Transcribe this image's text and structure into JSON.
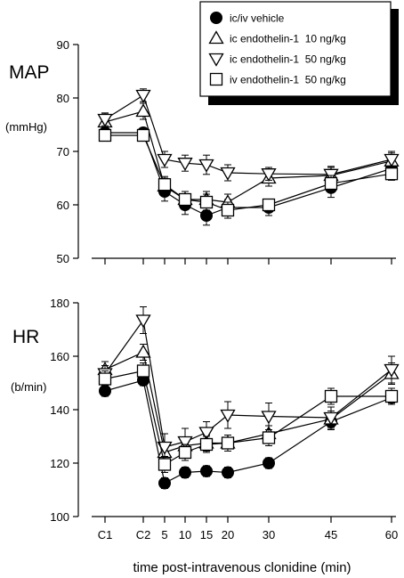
{
  "chart_data": [
    {
      "type": "line",
      "panel_label": "MAP",
      "ylabel": "(mmHg)",
      "xlabel": "",
      "ylim": [
        50,
        90
      ],
      "yticks": [
        50,
        60,
        70,
        80,
        90
      ],
      "grid": false,
      "series": [
        {
          "name": "ic/iv vehicle",
          "marker": "filled-circle",
          "x": [
            "C1",
            "C2",
            5,
            10,
            15,
            20,
            30,
            45,
            60
          ],
          "y": [
            73.5,
            73.5,
            62.5,
            60,
            58,
            59.5,
            59.5,
            63.2,
            66.8
          ],
          "err": [
            0.8,
            0.8,
            1.8,
            1.8,
            1.8,
            1.5,
            1.5,
            1.8,
            1.5
          ]
        },
        {
          "name": "ic endothelin-1  10 ng/kg",
          "marker": "triangle-up",
          "x": [
            "C1",
            "C2",
            5,
            10,
            15,
            20,
            30,
            45,
            60
          ],
          "y": [
            75.5,
            77.5,
            63.5,
            61,
            61,
            60.5,
            65,
            65.5,
            68.2
          ],
          "err": [
            1.5,
            1.5,
            1.5,
            1.5,
            1.5,
            1.5,
            1.5,
            1.5,
            1.5
          ]
        },
        {
          "name": "ic endothelin-1  50 ng/kg",
          "marker": "triangle-down",
          "x": [
            "C1",
            "C2",
            5,
            10,
            15,
            20,
            30,
            45,
            60
          ],
          "y": [
            76,
            80.5,
            68.5,
            67.8,
            67.5,
            66,
            65.8,
            65.7,
            68.5
          ],
          "err": [
            1.2,
            1.2,
            1.5,
            1.5,
            1.8,
            1.5,
            1.2,
            1.5,
            1.5
          ]
        },
        {
          "name": "iv endothelin-1  50 ng/kg",
          "marker": "open-square",
          "x": [
            "C1",
            "C2",
            5,
            10,
            15,
            20,
            30,
            45,
            60
          ],
          "y": [
            73,
            73,
            63.8,
            61,
            60.5,
            59,
            60,
            64,
            65.8
          ],
          "err": [
            0.8,
            0.8,
            1.5,
            1.5,
            1.5,
            1.5,
            1.0,
            1.5,
            1.2
          ]
        }
      ]
    },
    {
      "type": "line",
      "panel_label": "HR",
      "ylabel": "(b/min)",
      "xlabel": "time post-intravenous clonidine (min)",
      "ylim": [
        100,
        180
      ],
      "yticks": [
        100,
        120,
        140,
        160,
        180
      ],
      "xtick_labels": [
        "C1",
        "C2",
        "5",
        "10",
        "15",
        "20",
        "30",
        "45",
        "60"
      ],
      "grid": false,
      "series": [
        {
          "name": "ic/iv vehicle",
          "marker": "filled-circle",
          "x": [
            "C1",
            "C2",
            5,
            10,
            15,
            20,
            30,
            45,
            60
          ],
          "y": [
            147,
            151,
            112.5,
            116.5,
            117,
            116.5,
            120,
            135.5,
            144.5
          ],
          "err": [
            2,
            2,
            2,
            2,
            2,
            2,
            2,
            3,
            2
          ]
        },
        {
          "name": "ic endothelin-1  10 ng/kg",
          "marker": "triangle-up",
          "x": [
            "C1",
            "C2",
            5,
            10,
            15,
            20,
            30,
            45,
            60
          ],
          "y": [
            155,
            161.5,
            124,
            126.5,
            127.5,
            127.5,
            131,
            136.5,
            153.5
          ],
          "err": [
            3,
            3,
            3,
            3,
            3,
            3,
            3,
            3,
            4
          ]
        },
        {
          "name": "ic endothelin-1  50 ng/kg",
          "marker": "triangle-down",
          "x": [
            "C1",
            "C2",
            5,
            10,
            15,
            20,
            30,
            45,
            60
          ],
          "y": [
            153.5,
            173.5,
            126,
            128,
            131.5,
            138,
            137.5,
            137,
            155
          ],
          "err": [
            3,
            5,
            5,
            5,
            4,
            5,
            5,
            4,
            5
          ]
        },
        {
          "name": "iv endothelin-1  50 ng/kg",
          "marker": "open-square",
          "x": [
            "C1",
            "C2",
            5,
            10,
            15,
            20,
            30,
            45,
            60
          ],
          "y": [
            151.5,
            154.5,
            119.5,
            124,
            127,
            127.5,
            129.5,
            145,
            145
          ],
          "err": [
            3,
            3,
            3,
            3,
            3,
            3,
            3,
            3,
            3
          ]
        }
      ]
    }
  ],
  "legend": {
    "placement": "top-right",
    "entries": [
      {
        "label": "ic/iv vehicle",
        "marker": "filled-circle"
      },
      {
        "label": "ic endothelin-1  10 ng/kg",
        "marker": "triangle-up"
      },
      {
        "label": "ic endothelin-1  50 ng/kg",
        "marker": "triangle-down"
      },
      {
        "label": "iv endothelin-1  50 ng/kg",
        "marker": "open-square"
      }
    ]
  }
}
